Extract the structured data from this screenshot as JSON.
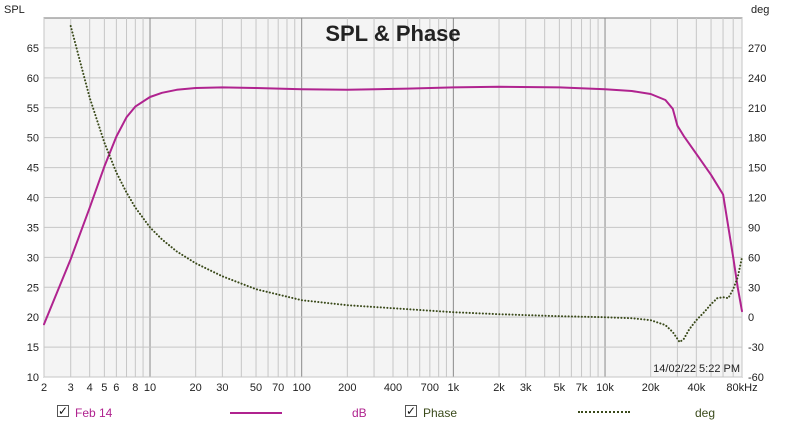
{
  "chart_data": {
    "type": "line",
    "title": "SPL & Phase",
    "ylabel_left": "SPL",
    "ylabel_right": "deg",
    "x_scale": "log",
    "x_range": [
      2,
      80000
    ],
    "x_ticks": [
      {
        "value": 2,
        "label": "2"
      },
      {
        "value": 3,
        "label": "3"
      },
      {
        "value": 4,
        "label": "4"
      },
      {
        "value": 5,
        "label": "5"
      },
      {
        "value": 6,
        "label": "6"
      },
      {
        "value": 8,
        "label": "8"
      },
      {
        "value": 10,
        "label": "10"
      },
      {
        "value": 20,
        "label": "20"
      },
      {
        "value": 30,
        "label": "30"
      },
      {
        "value": 50,
        "label": "50"
      },
      {
        "value": 70,
        "label": "70"
      },
      {
        "value": 100,
        "label": "100"
      },
      {
        "value": 200,
        "label": "200"
      },
      {
        "value": 400,
        "label": "400"
      },
      {
        "value": 700,
        "label": "700"
      },
      {
        "value": 1000,
        "label": "1k"
      },
      {
        "value": 2000,
        "label": "2k"
      },
      {
        "value": 3000,
        "label": "3k"
      },
      {
        "value": 5000,
        "label": "5k"
      },
      {
        "value": 7000,
        "label": "7k"
      },
      {
        "value": 10000,
        "label": "10k"
      },
      {
        "value": 20000,
        "label": "20k"
      },
      {
        "value": 40000,
        "label": "40k"
      },
      {
        "value": 80000,
        "label": "80kHz"
      }
    ],
    "y_left_range": [
      10,
      70
    ],
    "y_left_ticks": [
      10,
      15,
      20,
      25,
      30,
      35,
      40,
      45,
      50,
      55,
      60,
      65
    ],
    "y_right_range": [
      -60,
      300
    ],
    "y_right_ticks": [
      -60,
      -30,
      0,
      30,
      60,
      90,
      120,
      150,
      180,
      210,
      240,
      270
    ],
    "grid": true,
    "timestamp": "14/02/22 5:22 PM",
    "series": [
      {
        "name": "Feb 14",
        "unit": "dB",
        "axis": "left",
        "color": "#b0238f",
        "style": "solid",
        "x": [
          2,
          2.5,
          3,
          4,
          5,
          6,
          7,
          8,
          10,
          12,
          15,
          20,
          30,
          50,
          100,
          200,
          500,
          1000,
          2000,
          5000,
          10000,
          15000,
          20000,
          25000,
          28000,
          30000,
          33000,
          40000,
          50000,
          60000,
          70000,
          75000,
          80000
        ],
        "values": [
          18.8,
          24.8,
          29.7,
          38.3,
          45.2,
          50.2,
          53.4,
          55.2,
          56.8,
          57.5,
          58.0,
          58.3,
          58.4,
          58.3,
          58.1,
          58.0,
          58.2,
          58.4,
          58.5,
          58.4,
          58.1,
          57.8,
          57.3,
          56.3,
          54.8,
          52.0,
          50.3,
          47.3,
          43.8,
          40.5,
          30.0,
          25.0,
          21.0
        ]
      },
      {
        "name": "Phase",
        "unit": "deg",
        "axis": "right",
        "color": "#3a4a1a",
        "style": "dotted",
        "x": [
          3,
          4,
          5,
          6,
          7,
          8,
          10,
          12,
          15,
          20,
          30,
          50,
          100,
          200,
          500,
          1000,
          2000,
          5000,
          10000,
          15000,
          20000,
          25000,
          28000,
          31000,
          33000,
          36000,
          40000,
          45000,
          50000,
          55000,
          60000,
          65000,
          70000,
          75000,
          80000
        ],
        "values": [
          292,
          220,
          175,
          145,
          125,
          110,
          90,
          78,
          66,
          54,
          41,
          28,
          17,
          12,
          8,
          5,
          3,
          1,
          0,
          -1,
          -3,
          -8,
          -15,
          -25,
          -22,
          -12,
          -3,
          5,
          13,
          19,
          20,
          19,
          28,
          40,
          60
        ]
      }
    ]
  },
  "legend": {
    "items": [
      {
        "label": "Feb 14",
        "checked": "✓",
        "unit": "dB"
      },
      {
        "label": "Phase",
        "checked": "✓",
        "unit": "deg"
      }
    ]
  }
}
